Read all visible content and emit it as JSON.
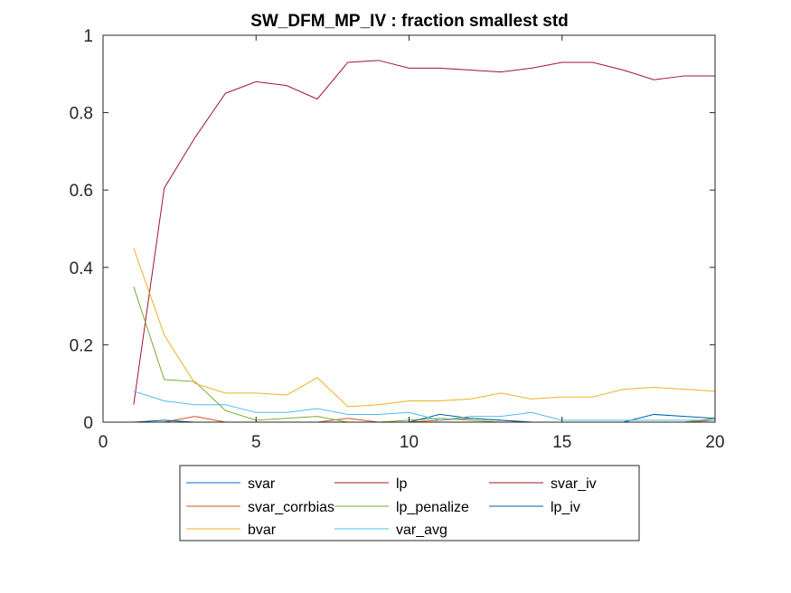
{
  "chart_data": {
    "type": "line",
    "title": "SW_DFM_MP_IV : fraction smallest std",
    "xlabel": "",
    "ylabel": "",
    "xlim": [
      0,
      20
    ],
    "ylim": [
      0,
      1
    ],
    "xticks": [
      0,
      5,
      10,
      15,
      20
    ],
    "yticks": [
      0,
      0.2,
      0.4,
      0.6,
      0.8,
      1
    ],
    "xtick_labels": [
      "0",
      "5",
      "10",
      "15",
      "20"
    ],
    "ytick_labels": [
      "0",
      "0.2",
      "0.4",
      "0.6",
      "0.8",
      "1"
    ],
    "grid": false,
    "legend_position": "bottom, outside, 3 columns",
    "x": [
      1,
      2,
      3,
      4,
      5,
      6,
      7,
      8,
      9,
      10,
      11,
      12,
      13,
      14,
      15,
      16,
      17,
      18,
      19,
      20
    ],
    "series": [
      {
        "name": "svar",
        "color": "#0072BD",
        "values": [
          0,
          0,
          0,
          0,
          0,
          0,
          0,
          0,
          0,
          0,
          0,
          0,
          0,
          0,
          0,
          0,
          0,
          0,
          0,
          0
        ]
      },
      {
        "name": "lp",
        "color": "#A2142F",
        "values": [
          0,
          0,
          0,
          0,
          0,
          0,
          0,
          0,
          0,
          0,
          0,
          0,
          0,
          0,
          0,
          0,
          0,
          0,
          0,
          0
        ]
      },
      {
        "name": "svar_iv",
        "color": "#A2142F",
        "values": [
          0.045,
          0.605,
          0.735,
          0.85,
          0.88,
          0.87,
          0.835,
          0.93,
          0.935,
          0.915,
          0.915,
          0.91,
          0.905,
          0.915,
          0.93,
          0.93,
          0.91,
          0.885,
          0.895,
          0.895
        ]
      },
      {
        "name": "svar_corrbias",
        "color": "#D95319",
        "values": [
          0,
          0,
          0.015,
          0,
          0,
          0,
          0,
          0.01,
          0,
          0,
          0.005,
          0.01,
          0.005,
          0,
          0,
          0,
          0,
          0,
          0,
          0.005
        ]
      },
      {
        "name": "lp_penalize",
        "color": "#77AC30",
        "values": [
          0.35,
          0.11,
          0.105,
          0.03,
          0.005,
          0.01,
          0.015,
          0,
          0,
          0.005,
          0.01,
          0.005,
          0,
          0,
          0,
          0,
          0,
          0,
          0,
          0.01
        ]
      },
      {
        "name": "lp_iv",
        "color": "#0060A0",
        "values": [
          0,
          0.005,
          0,
          0,
          0,
          0,
          0,
          0,
          0,
          0,
          0.02,
          0.01,
          0.005,
          0,
          0,
          0,
          0,
          0.02,
          0.015,
          0.01
        ]
      },
      {
        "name": "bvar",
        "color": "#EDB120",
        "values": [
          0.45,
          0.225,
          0.1,
          0.075,
          0.075,
          0.07,
          0.115,
          0.04,
          0.045,
          0.055,
          0.055,
          0.06,
          0.075,
          0.06,
          0.065,
          0.065,
          0.085,
          0.09,
          0.085,
          0.08
        ]
      },
      {
        "name": "var_avg",
        "color": "#4DBEEE",
        "values": [
          0.08,
          0.055,
          0.045,
          0.045,
          0.025,
          0.025,
          0.035,
          0.02,
          0.02,
          0.025,
          0.005,
          0.015,
          0.015,
          0.025,
          0.005,
          0.005,
          0.005,
          0.005,
          0.005,
          0.005
        ]
      }
    ]
  }
}
